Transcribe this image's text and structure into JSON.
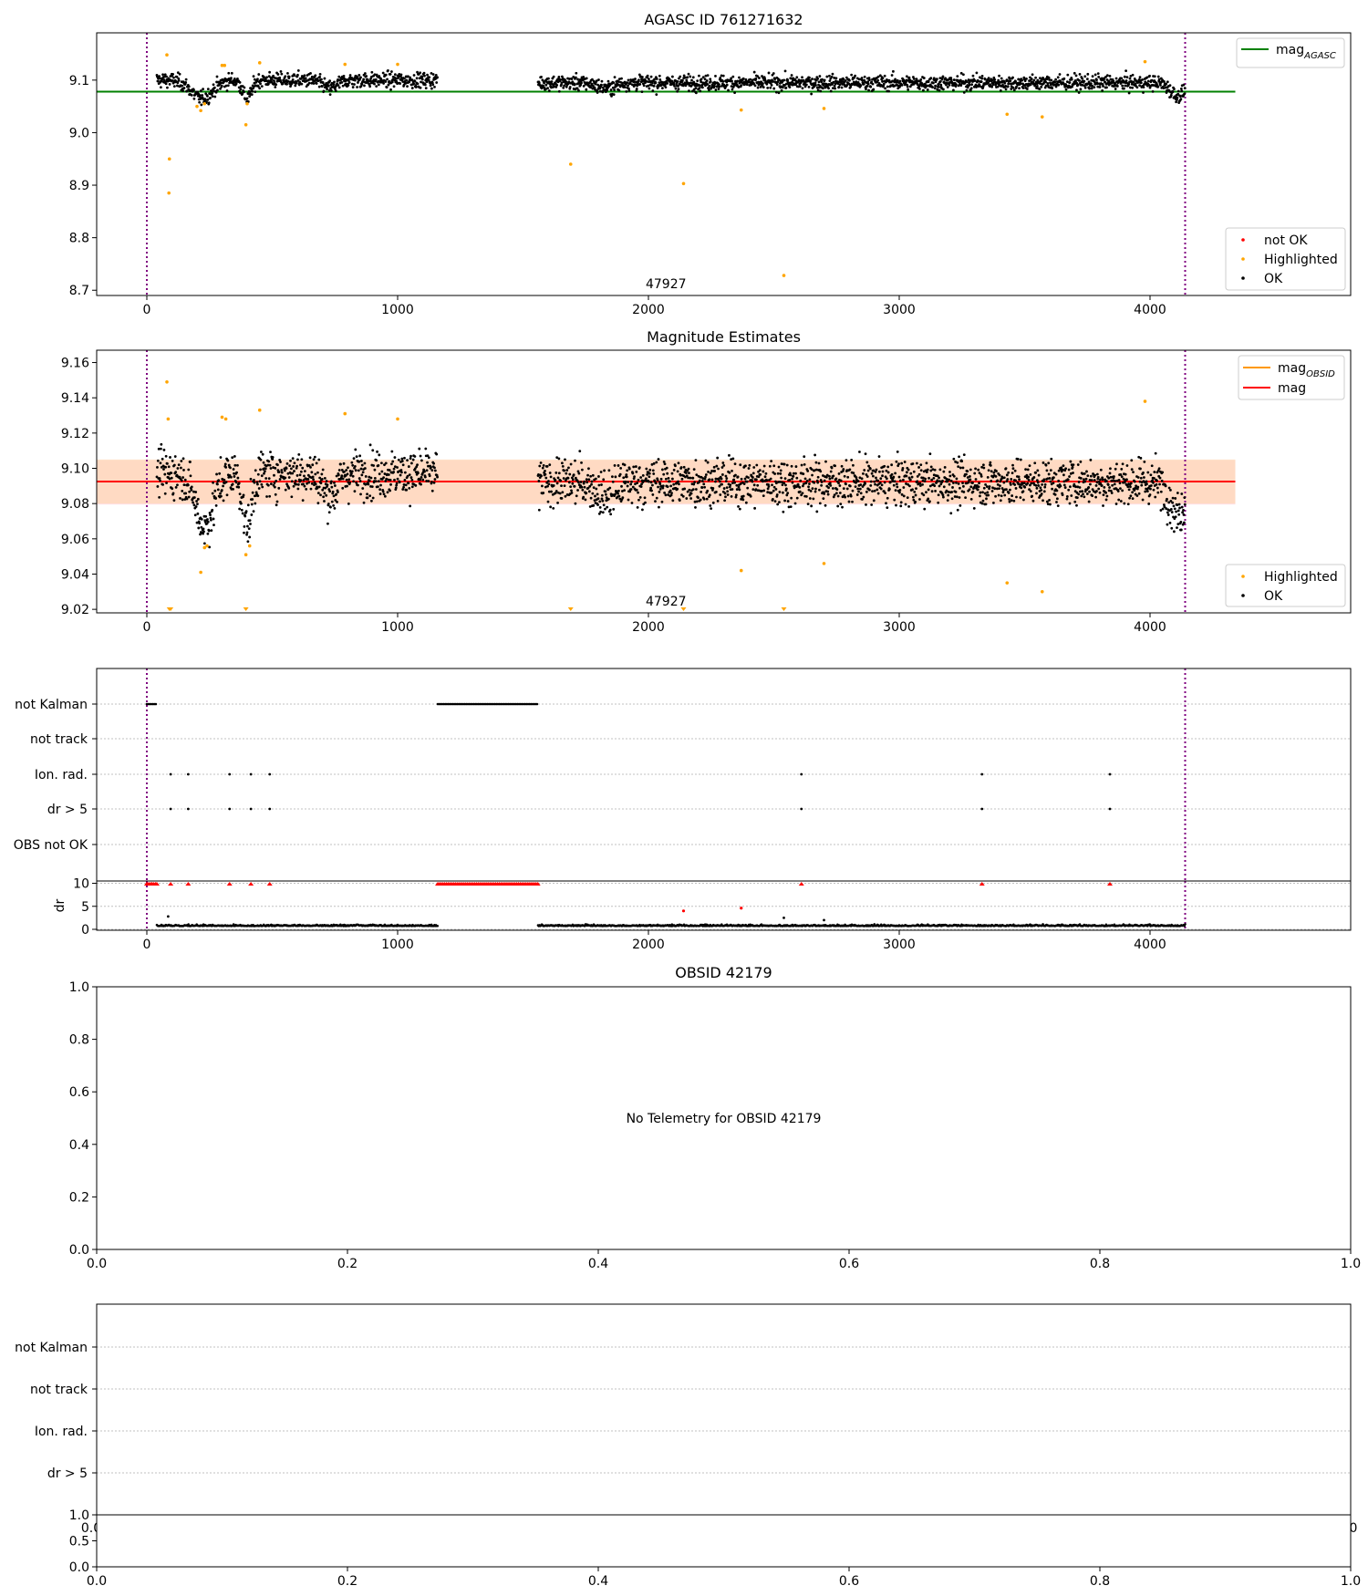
{
  "chart_data": [
    {
      "type": "scatter",
      "title": "AGASC ID 761271632",
      "xlim": [
        -200,
        4800
      ],
      "ylim": [
        8.69,
        9.19
      ],
      "xticks": [
        0,
        1000,
        2000,
        3000,
        4000
      ],
      "yticks": [
        8.7,
        8.8,
        8.9,
        9.0,
        9.1
      ],
      "ytick_labels": [
        "8.7",
        "8.8",
        "8.9",
        "9.0",
        "9.1"
      ],
      "obsid_marker": {
        "x": 2070,
        "label": "47927"
      },
      "vlines": [
        0,
        4140
      ],
      "hline": {
        "name": "mag_AGASC",
        "value": 9.078,
        "x_end": 4340
      },
      "legend_line": {
        "label": "mag",
        "sub": "AGASC"
      },
      "legend_points": [
        "not OK",
        "Highlighted",
        "OK"
      ],
      "series": [
        {
          "name": "OK",
          "segments": [
            {
              "x": [
                40,
                1160
              ],
              "mean": 9.1,
              "spread": 0.012,
              "dips": [
                {
                  "x": 220,
                  "w": 60,
                  "d": -0.035
                },
                {
                  "x": 400,
                  "w": 25,
                  "d": -0.035
                },
                {
                  "x": 730,
                  "w": 40,
                  "d": -0.015
                }
              ]
            },
            {
              "x": [
                1560,
                4140
              ],
              "mean": 9.095,
              "spread": 0.012,
              "dips": [
                {
                  "x": 1830,
                  "w": 50,
                  "d": -0.01
                },
                {
                  "x": 4110,
                  "w": 40,
                  "d": -0.025
                }
              ]
            }
          ]
        },
        {
          "name": "Highlighted",
          "points": [
            [
              80,
              9.148
            ],
            [
              90,
              8.95
            ],
            [
              88,
              8.885
            ],
            [
              200,
              9.05
            ],
            [
              215,
              9.042
            ],
            [
              230,
              9.055
            ],
            [
              300,
              9.128
            ],
            [
              310,
              9.128
            ],
            [
              400,
              9.055
            ],
            [
              395,
              9.015
            ],
            [
              450,
              9.133
            ],
            [
              790,
              9.13
            ],
            [
              1000,
              9.13
            ],
            [
              1690,
              8.94
            ],
            [
              2140,
              8.903
            ],
            [
              2370,
              9.043
            ],
            [
              2540,
              8.728
            ],
            [
              2700,
              9.046
            ],
            [
              3430,
              9.035
            ],
            [
              3570,
              9.03
            ],
            [
              3980,
              9.135
            ]
          ]
        }
      ]
    },
    {
      "type": "scatter",
      "title": "Magnitude Estimates",
      "xlim": [
        -200,
        4800
      ],
      "ylim": [
        9.018,
        9.167
      ],
      "xticks": [
        0,
        1000,
        2000,
        3000,
        4000
      ],
      "yticks": [
        9.02,
        9.04,
        9.06,
        9.08,
        9.1,
        9.12,
        9.14,
        9.16
      ],
      "ytick_labels": [
        "9.02",
        "9.04",
        "9.06",
        "9.08",
        "9.10",
        "9.12",
        "9.14",
        "9.16"
      ],
      "obsid_marker": {
        "x": 2070,
        "label": "47927"
      },
      "vlines": [
        0,
        4140
      ],
      "mag_obsid": {
        "value": 9.0925,
        "band": [
          9.08,
          9.105
        ],
        "x_end": 4340
      },
      "mag": {
        "value": 9.0925,
        "band": [
          9.0795,
          9.1045
        ],
        "x_end": 4340
      },
      "legend_lines": [
        {
          "label": "mag",
          "sub": "OBSID",
          "color": "#ff9900"
        },
        {
          "label": "mag",
          "sub": "",
          "color": "#ff0000"
        }
      ],
      "legend_points": [
        "Highlighted",
        "OK"
      ],
      "series": [
        {
          "name": "OK",
          "segments": [
            {
              "x": [
                40,
                1160
              ],
              "mean": 9.097,
              "spread": 0.011,
              "dips": [
                {
                  "x": 230,
                  "w": 50,
                  "d": -0.03
                },
                {
                  "x": 400,
                  "w": 25,
                  "d": -0.03
                },
                {
                  "x": 730,
                  "w": 40,
                  "d": -0.012
                }
              ]
            },
            {
              "x": [
                1560,
                4140
              ],
              "mean": 9.092,
              "spread": 0.011,
              "dips": [
                {
                  "x": 1830,
                  "w": 50,
                  "d": -0.008
                },
                {
                  "x": 4110,
                  "w": 40,
                  "d": -0.018
                }
              ]
            }
          ]
        },
        {
          "name": "Highlighted",
          "points": [
            [
              80,
              9.149
            ],
            [
              85,
              9.128
            ],
            [
              215,
              9.041
            ],
            [
              230,
              9.055
            ],
            [
              240,
              9.056
            ],
            [
              300,
              9.129
            ],
            [
              315,
              9.128
            ],
            [
              395,
              9.051
            ],
            [
              410,
              9.056
            ],
            [
              450,
              9.133
            ],
            [
              790,
              9.131
            ],
            [
              1000,
              9.128
            ],
            [
              2370,
              9.042
            ],
            [
              2700,
              9.046
            ],
            [
              3430,
              9.035
            ],
            [
              3570,
              9.03
            ],
            [
              3980,
              9.138
            ]
          ]
        },
        {
          "name": "Highlighted (clipped)",
          "x": [
            90,
            95,
            395,
            1690,
            2140,
            2540
          ]
        }
      ]
    },
    {
      "type": "scatter",
      "flags_panel": true,
      "xlim": [
        -200,
        4800
      ],
      "rows": [
        "not Kalman",
        "not track",
        "Ion. rad.",
        "dr > 5",
        "OBS not OK"
      ],
      "vlines": [
        0,
        4140
      ],
      "flag_ranges": [
        {
          "row": "not Kalman",
          "x": [
            0,
            40
          ]
        },
        {
          "row": "not Kalman",
          "x": [
            1160,
            1560
          ]
        }
      ],
      "flag_points": [
        {
          "row": "Ion. rad.",
          "x": [
            95,
            165,
            330,
            415,
            490,
            2610,
            3330,
            3840
          ]
        },
        {
          "row": "dr > 5",
          "x": [
            95,
            165,
            330,
            415,
            490,
            2610,
            3330,
            3840
          ]
        }
      ]
    },
    {
      "type": "scatter",
      "ylabel": "dr",
      "xlim": [
        -200,
        4800
      ],
      "ylim": [
        -0.2,
        10.5
      ],
      "xticks": [
        0,
        1000,
        2000,
        3000,
        4000
      ],
      "yticks": [
        0,
        5,
        10
      ],
      "vlines": [
        0,
        4140
      ],
      "series": [
        {
          "name": "OK",
          "segments": [
            {
              "x": [
                40,
                1160
              ],
              "mean": 0.7
            },
            {
              "x": [
                1560,
                4140
              ],
              "mean": 0.7
            }
          ]
        },
        {
          "name": "not OK",
          "points": [
            [
              2140,
              4.0
            ],
            [
              2370,
              4.6
            ]
          ],
          "clipped_x": [
            0,
            20,
            40,
            95,
            165,
            330,
            415,
            490,
            2610,
            3330,
            3840
          ]
        },
        {
          "name": "OK outliers",
          "points": [
            [
              85,
              2.8
            ],
            [
              2540,
              2.5
            ],
            [
              2700,
              2.0
            ]
          ]
        }
      ]
    },
    {
      "type": "scatter",
      "title": "OBSID 42179",
      "message": "No Telemetry for OBSID 42179",
      "xlim": [
        0,
        1
      ],
      "ylim": [
        0,
        1
      ],
      "xticks": [
        0,
        0.2,
        0.4,
        0.6,
        0.8,
        1.0
      ],
      "xtick_labels": [
        "0.0",
        "0.2",
        "0.4",
        "0.6",
        "0.8",
        "1.0"
      ],
      "yticks": [
        0,
        0.2,
        0.4,
        0.6,
        0.8,
        1.0
      ],
      "ytick_labels": [
        "0.0",
        "0.2",
        "0.4",
        "0.6",
        "0.8",
        "1.0"
      ]
    },
    {
      "type": "scatter",
      "flags_panel": true,
      "rows": [
        "not Kalman",
        "not track",
        "Ion. rad.",
        "dr > 5"
      ],
      "xtick_labels_partial": [
        "0.0",
        "0"
      ]
    },
    {
      "type": "scatter",
      "xlim": [
        0,
        1
      ],
      "ylim": [
        0,
        1
      ],
      "xticks": [
        0,
        0.2,
        0.4,
        0.6,
        0.8,
        1.0
      ],
      "xtick_labels": [
        "0.0",
        "0.2",
        "0.4",
        "0.6",
        "0.8",
        "1.0"
      ],
      "yticks": [
        0,
        0.5,
        1.0
      ],
      "ytick_labels": [
        "0.0",
        "0.5",
        "1.0"
      ]
    }
  ],
  "colors": {
    "ok": "#000000",
    "highlighted": "#ffa500",
    "not_ok": "#ff0000",
    "mag_agasc": "#008000",
    "mag_obsid": "#ff9900",
    "mag": "#ff0000",
    "band_mag_obsid": "#ffd8b8",
    "band_mag": "#ffd0d8",
    "vline": "#800080",
    "grid": "#c0c0c0"
  }
}
